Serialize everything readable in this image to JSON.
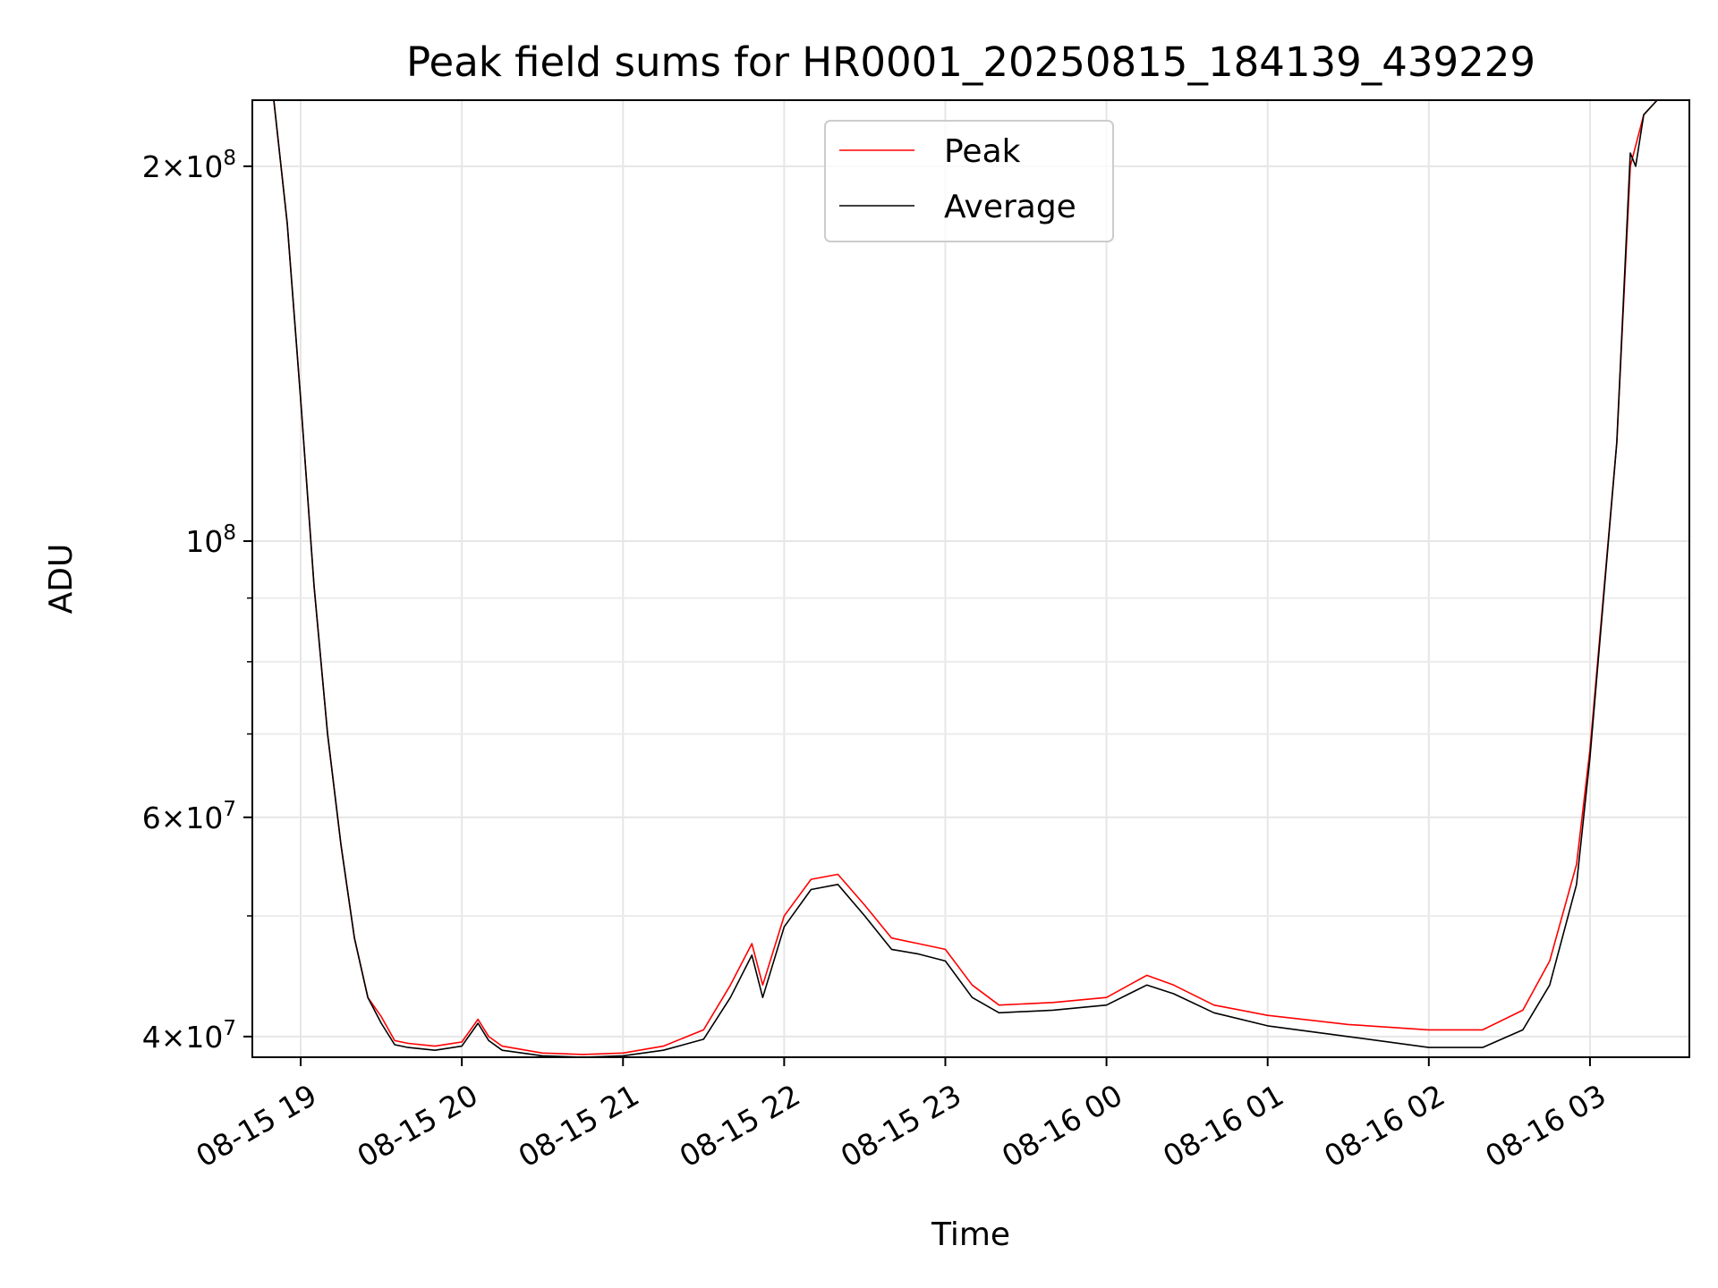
{
  "chart_data": {
    "type": "line",
    "title": "Peak field sums for HR0001_20250815_184139_439229",
    "xlabel": "Time",
    "ylabel": "ADU",
    "y_scale": "log",
    "ylim": [
      38500000,
      226000000
    ],
    "xlim": [
      "2025-08-15 18:42",
      "2025-08-16 03:37"
    ],
    "grid": true,
    "legend_position": "top-center",
    "x_ticks": [
      {
        "value": "2025-08-15 19:00",
        "label": "08-15 19"
      },
      {
        "value": "2025-08-15 20:00",
        "label": "08-15 20"
      },
      {
        "value": "2025-08-15 21:00",
        "label": "08-15 21"
      },
      {
        "value": "2025-08-15 22:00",
        "label": "08-15 22"
      },
      {
        "value": "2025-08-15 23:00",
        "label": "08-15 23"
      },
      {
        "value": "2025-08-16 00:00",
        "label": "08-16 00"
      },
      {
        "value": "2025-08-16 01:00",
        "label": "08-16 01"
      },
      {
        "value": "2025-08-16 02:00",
        "label": "08-16 02"
      },
      {
        "value": "2025-08-16 03:00",
        "label": "08-16 03"
      }
    ],
    "y_ticks": [
      {
        "value": 40000000,
        "mantissa": "4",
        "exponent": "7"
      },
      {
        "value": 60000000,
        "mantissa": "6",
        "exponent": "7"
      },
      {
        "value": 100000000,
        "mantissa": "",
        "exponent": "8"
      },
      {
        "value": 200000000,
        "mantissa": "2",
        "exponent": "8"
      }
    ],
    "y_minor_ticks": [
      50000000,
      70000000,
      80000000,
      90000000
    ],
    "series": [
      {
        "name": "Peak",
        "color": "#ff0000",
        "x": [
          "2025-08-15 18:42",
          "2025-08-15 18:50",
          "2025-08-15 18:55",
          "2025-08-15 19:00",
          "2025-08-15 19:05",
          "2025-08-15 19:10",
          "2025-08-15 19:15",
          "2025-08-15 19:20",
          "2025-08-15 19:25",
          "2025-08-15 19:30",
          "2025-08-15 19:35",
          "2025-08-15 19:40",
          "2025-08-15 19:50",
          "2025-08-15 20:00",
          "2025-08-15 20:06",
          "2025-08-15 20:10",
          "2025-08-15 20:15",
          "2025-08-15 20:30",
          "2025-08-15 20:45",
          "2025-08-15 21:00",
          "2025-08-15 21:15",
          "2025-08-15 21:30",
          "2025-08-15 21:40",
          "2025-08-15 21:48",
          "2025-08-15 21:52",
          "2025-08-15 22:00",
          "2025-08-15 22:10",
          "2025-08-15 22:20",
          "2025-08-15 22:30",
          "2025-08-15 22:40",
          "2025-08-15 22:50",
          "2025-08-15 23:00",
          "2025-08-15 23:10",
          "2025-08-15 23:20",
          "2025-08-15 23:40",
          "2025-08-16 00:00",
          "2025-08-16 00:15",
          "2025-08-16 00:25",
          "2025-08-16 00:40",
          "2025-08-16 01:00",
          "2025-08-16 01:30",
          "2025-08-16 02:00",
          "2025-08-16 02:20",
          "2025-08-16 02:35",
          "2025-08-16 02:45",
          "2025-08-16 02:55",
          "2025-08-16 03:00",
          "2025-08-16 03:10",
          "2025-08-16 03:15",
          "2025-08-16 03:20",
          "2025-08-16 03:25",
          "2025-08-16 03:30",
          "2025-08-16 03:37"
        ],
        "values": [
          226000000,
          226000000,
          180000000,
          130000000,
          92000000,
          70000000,
          57000000,
          48000000,
          43000000,
          41500000,
          39700000,
          39500000,
          39300000,
          39600000,
          41300000,
          40000000,
          39300000,
          38800000,
          38700000,
          38800000,
          39300000,
          40500000,
          44000000,
          47500000,
          44000000,
          50000000,
          53500000,
          54000000,
          51000000,
          48000000,
          47500000,
          47000000,
          44000000,
          42400000,
          42600000,
          43000000,
          44800000,
          44000000,
          42400000,
          41600000,
          40900000,
          40500000,
          40500000,
          42000000,
          46000000,
          55000000,
          68000000,
          120000000,
          200000000,
          220000000,
          226000000,
          226000000,
          226000000
        ]
      },
      {
        "name": "Average",
        "color": "#000000",
        "x": [
          "2025-08-15 18:42",
          "2025-08-15 18:50",
          "2025-08-15 18:55",
          "2025-08-15 19:00",
          "2025-08-15 19:05",
          "2025-08-15 19:10",
          "2025-08-15 19:15",
          "2025-08-15 19:20",
          "2025-08-15 19:25",
          "2025-08-15 19:30",
          "2025-08-15 19:35",
          "2025-08-15 19:40",
          "2025-08-15 19:50",
          "2025-08-15 20:00",
          "2025-08-15 20:06",
          "2025-08-15 20:10",
          "2025-08-15 20:15",
          "2025-08-15 20:30",
          "2025-08-15 20:45",
          "2025-08-15 21:00",
          "2025-08-15 21:15",
          "2025-08-15 21:30",
          "2025-08-15 21:40",
          "2025-08-15 21:48",
          "2025-08-15 21:52",
          "2025-08-15 22:00",
          "2025-08-15 22:10",
          "2025-08-15 22:20",
          "2025-08-15 22:30",
          "2025-08-15 22:40",
          "2025-08-15 22:50",
          "2025-08-15 23:00",
          "2025-08-15 23:10",
          "2025-08-15 23:20",
          "2025-08-15 23:40",
          "2025-08-16 00:00",
          "2025-08-16 00:15",
          "2025-08-16 00:25",
          "2025-08-16 00:40",
          "2025-08-16 01:00",
          "2025-08-16 01:30",
          "2025-08-16 02:00",
          "2025-08-16 02:20",
          "2025-08-16 02:35",
          "2025-08-16 02:45",
          "2025-08-16 02:55",
          "2025-08-16 03:00",
          "2025-08-16 03:10",
          "2025-08-16 03:15",
          "2025-08-16 03:17",
          "2025-08-16 03:20",
          "2025-08-16 03:25",
          "2025-08-16 03:37"
        ],
        "values": [
          226000000,
          226000000,
          180000000,
          130000000,
          92000000,
          70000000,
          57000000,
          48000000,
          43000000,
          41000000,
          39400000,
          39200000,
          39000000,
          39300000,
          41000000,
          39700000,
          39000000,
          38600000,
          38500000,
          38600000,
          39000000,
          39800000,
          43000000,
          46500000,
          43000000,
          49000000,
          52500000,
          53000000,
          50000000,
          47000000,
          46600000,
          46000000,
          43000000,
          41800000,
          42000000,
          42400000,
          44000000,
          43300000,
          41800000,
          40800000,
          40000000,
          39200000,
          39200000,
          40500000,
          44000000,
          53000000,
          67000000,
          120000000,
          205000000,
          200000000,
          220000000,
          226000000,
          226000000
        ]
      }
    ]
  }
}
